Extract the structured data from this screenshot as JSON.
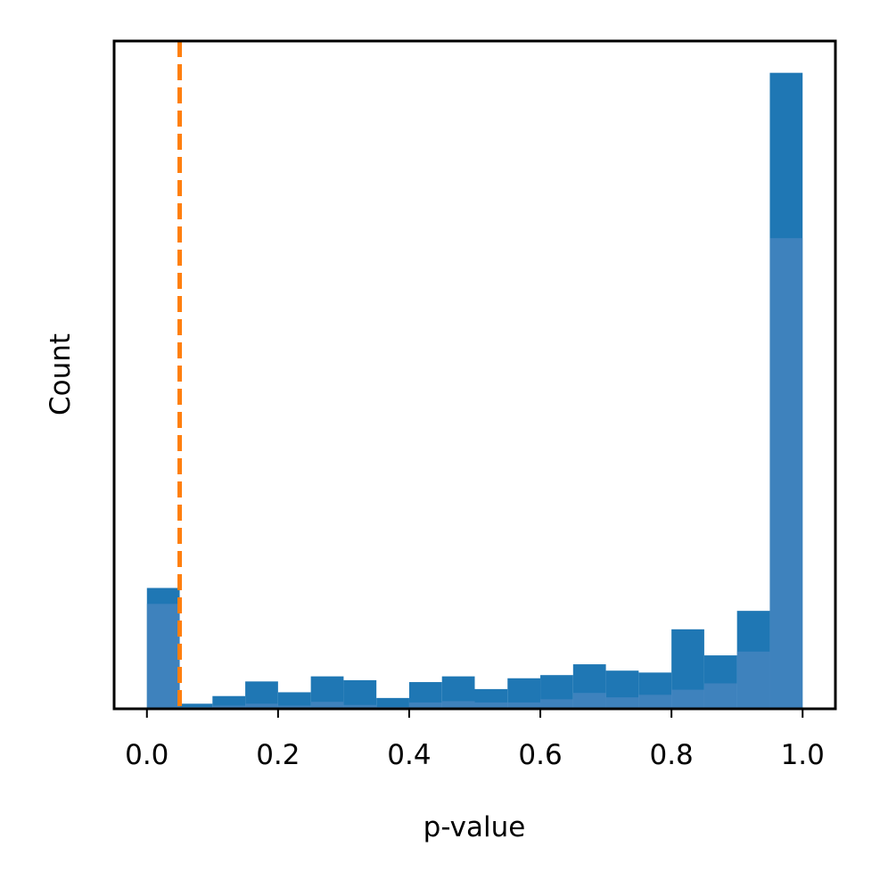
{
  "chart_data": {
    "type": "bar",
    "title": "",
    "xlabel": "p-value",
    "ylabel": "Count",
    "xlim": [
      -0.05,
      1.05
    ],
    "ylim": [
      0,
      105
    ],
    "y_ticks_shown": false,
    "x_ticks": [
      0.0,
      0.2,
      0.4,
      0.6,
      0.8,
      1.0
    ],
    "x_tick_labels": [
      "0.0",
      "0.2",
      "0.4",
      "0.6",
      "0.8",
      "1.0"
    ],
    "grid": false,
    "legend": "none",
    "bin_edges": [
      0.0,
      0.05,
      0.1,
      0.15,
      0.2,
      0.25,
      0.3,
      0.35,
      0.4,
      0.45,
      0.5,
      0.55,
      0.6,
      0.65,
      0.7,
      0.75,
      0.8,
      0.85,
      0.9,
      0.95,
      1.0
    ],
    "series": [
      {
        "color": "#1f77b4",
        "opacity": 1.0,
        "values": [
          19,
          0.8,
          2,
          4.3,
          2.6,
          5.1,
          4.5,
          1.7,
          4.2,
          5.1,
          3.1,
          4.8,
          5.3,
          7,
          6,
          5.7,
          12.5,
          8.4,
          15.4,
          100
        ]
      },
      {
        "color": "#4a86c0",
        "opacity": 0.75,
        "values": [
          16.5,
          0.3,
          0.5,
          0.8,
          0.5,
          1.1,
          0.6,
          0.3,
          1,
          1.2,
          1,
          1,
          1.5,
          2.5,
          1.8,
          2.2,
          3,
          4,
          9,
          74
        ]
      }
    ],
    "reference_line": {
      "x": 0.05,
      "color": "#ff7f0e",
      "style": "dashed"
    }
  }
}
